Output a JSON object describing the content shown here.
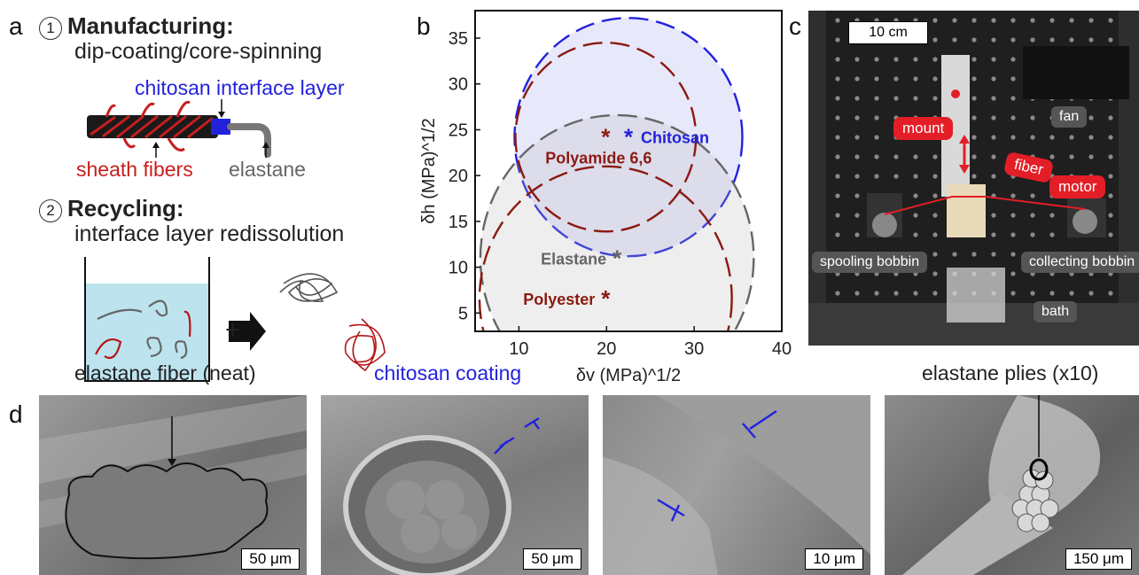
{
  "panel_a": {
    "label": "a",
    "step1_num": "1",
    "step1_title": "Manufacturing:",
    "step1_sub": "dip-coating/core-spinning",
    "interface_label": "chitosan interface layer",
    "sheath_label": "sheath fibers",
    "elastane_label": "elastane",
    "step2_num": "2",
    "step2_title": "Recycling:",
    "step2_sub": "interface layer redissolution",
    "plus": "+"
  },
  "panel_b": {
    "label": "b"
  },
  "chart_data": {
    "type": "scatter",
    "xlabel": "δv (MPa)^1/2",
    "ylabel": "δh (MPa)^1/2",
    "xlim": [
      5,
      40
    ],
    "ylim": [
      3,
      38
    ],
    "xticks": [
      10,
      20,
      30,
      40
    ],
    "yticks": [
      5,
      10,
      15,
      20,
      25,
      30,
      35
    ],
    "grid": false,
    "points": [
      {
        "name": "Chitosan",
        "x": 22.5,
        "y": 24.2,
        "color": "#2222dd"
      },
      {
        "name": "Polyamide 6,6",
        "x": 19.9,
        "y": 24.2,
        "color": "#8b1a10"
      },
      {
        "name": "Elastane",
        "x": 21.2,
        "y": 11.0,
        "color": "#666666"
      },
      {
        "name": "Polyester",
        "x": 19.9,
        "y": 6.6,
        "color": "#8b1a10"
      }
    ],
    "spheres": [
      {
        "name": "Chitosan",
        "cx": 22.5,
        "cy": 24.2,
        "r": 13.0,
        "color": "#2222dd",
        "fill": "rgba(150,150,235,0.22)"
      },
      {
        "name": "Elastane",
        "cx": 21.2,
        "cy": 11.0,
        "r": 15.6,
        "color": "#666666",
        "fill": "rgba(185,185,185,0.24)"
      },
      {
        "name": "Polyamide 6,6",
        "cx": 19.9,
        "cy": 24.2,
        "r": 10.3,
        "color": "#8b1a10",
        "fill": "none"
      },
      {
        "name": "Polyester",
        "cx": 19.9,
        "cy": 6.6,
        "r": 14.4,
        "color": "#8b1a10",
        "fill": "none"
      }
    ]
  },
  "panel_c": {
    "label": "c",
    "scale_bar": "10 cm",
    "fan": "fan",
    "mount": "mount",
    "fiber": "fiber",
    "motor": "motor",
    "spooling": "spooling bobbin",
    "collecting": "collecting bobbin",
    "bath": "bath"
  },
  "panel_d": {
    "label": "d",
    "title1": "elastane fiber (neat)",
    "title2": "chitosan coating",
    "title4": "elastane plies (x10)",
    "scale1": "50 μm",
    "scale2": "50 μm",
    "scale3": "10 μm",
    "scale4": "150 μm"
  }
}
